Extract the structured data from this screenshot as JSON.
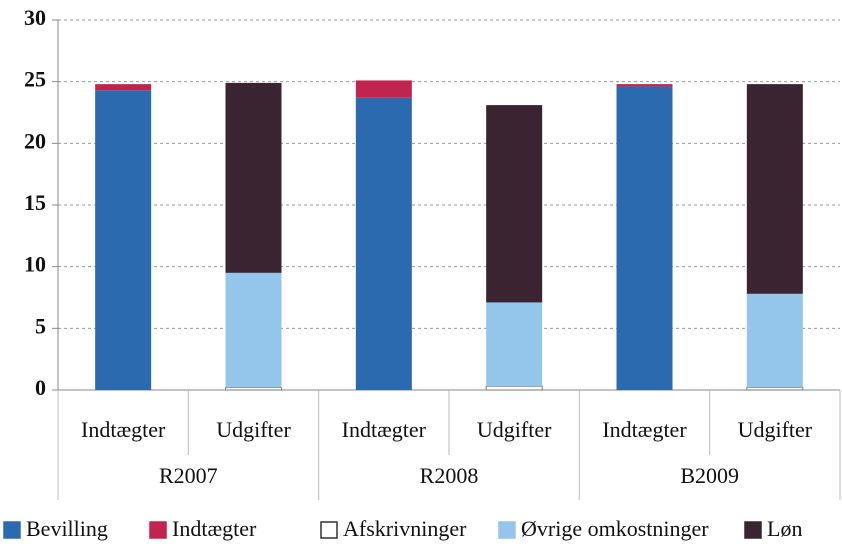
{
  "chart_data": {
    "type": "stacked_bar",
    "categories": [
      "Indtægter",
      "Udgifter",
      "Indtægter",
      "Udgifter",
      "Indtægter",
      "Udgifter"
    ],
    "groups": [
      "R2007",
      "R2008",
      "B2009"
    ],
    "series": [
      {
        "name": "Bevilling",
        "color": "#2c6ab0",
        "values": [
          24.3,
          0,
          23.7,
          0,
          24.6,
          0
        ]
      },
      {
        "name": "Indtægter",
        "color": "#c1244e",
        "values": [
          0.5,
          0,
          1.4,
          0,
          0.2,
          0
        ]
      },
      {
        "name": "Afskrivninger",
        "color": "#ffffff",
        "values": [
          0,
          0.2,
          0,
          0.3,
          0,
          0.2
        ]
      },
      {
        "name": "Øvrige omkostninger",
        "color": "#93c6ea",
        "values": [
          0,
          9.3,
          0,
          6.8,
          0,
          7.6
        ]
      },
      {
        "name": "Løn",
        "color": "#3a2431",
        "values": [
          0,
          15.4,
          0,
          16.0,
          0,
          17.0
        ]
      }
    ],
    "ylim": [
      0,
      30
    ],
    "yticks": [
      0,
      5,
      10,
      15,
      20,
      25,
      30
    ],
    "grid": true
  }
}
